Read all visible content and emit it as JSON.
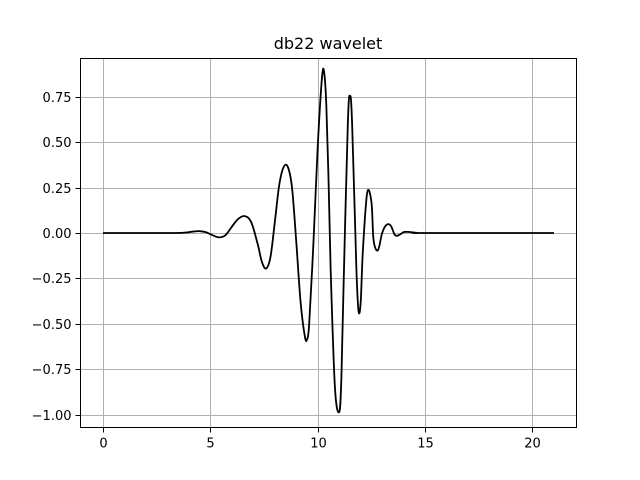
{
  "chart_data": {
    "type": "line",
    "title": "db22 wavelet",
    "xlabel": "",
    "ylabel": "",
    "xlim": [
      -1.05,
      22.05
    ],
    "ylim": [
      -1.07,
      0.96
    ],
    "xticks": [
      0,
      5,
      10,
      15,
      20
    ],
    "xtick_labels": [
      "0",
      "5",
      "10",
      "15",
      "20"
    ],
    "yticks": [
      0.75,
      0.5,
      0.25,
      0.0,
      -0.25,
      -0.5,
      -0.75,
      -1.0
    ],
    "ytick_labels": [
      "0.75",
      "0.50",
      "0.25",
      "0.00",
      "−0.25",
      "−0.50",
      "−0.75",
      "−1.00"
    ],
    "grid": true,
    "color": "#000000",
    "series": [
      {
        "x": [
          0,
          3.0,
          3.8,
          4.2,
          4.5,
          4.8,
          5.1,
          5.4,
          5.7,
          6.0,
          6.3,
          6.6,
          6.9,
          7.2,
          7.4,
          7.6,
          7.8,
          8.0,
          8.2,
          8.4,
          8.6,
          8.8,
          9.0,
          9.2,
          9.4,
          9.5,
          9.6,
          9.8,
          10.0,
          10.2,
          10.3,
          10.4,
          10.5,
          10.6,
          10.8,
          11.0,
          11.1,
          11.2,
          11.4,
          11.5,
          11.6,
          11.8,
          11.9,
          12.0,
          12.1,
          12.3,
          12.5,
          12.6,
          12.8,
          13.0,
          13.2,
          13.4,
          13.6,
          13.8,
          14.0,
          14.2,
          14.6,
          15.0,
          21.0
        ],
        "y": [
          0.0,
          0.0,
          0.002,
          0.008,
          0.01,
          0.004,
          -0.012,
          -0.024,
          -0.012,
          0.035,
          0.078,
          0.093,
          0.06,
          -0.06,
          -0.16,
          -0.195,
          -0.13,
          0.06,
          0.26,
          0.36,
          0.365,
          0.25,
          -0.05,
          -0.38,
          -0.57,
          -0.585,
          -0.5,
          -0.05,
          0.48,
          0.86,
          0.88,
          0.7,
          0.3,
          -0.2,
          -0.85,
          -0.985,
          -0.8,
          -0.3,
          0.6,
          0.755,
          0.6,
          -0.2,
          -0.43,
          -0.38,
          -0.1,
          0.22,
          0.17,
          -0.04,
          -0.095,
          0.0,
          0.045,
          0.04,
          -0.012,
          -0.01,
          0.005,
          0.006,
          0.001,
          0.0,
          0.0
        ]
      }
    ]
  }
}
